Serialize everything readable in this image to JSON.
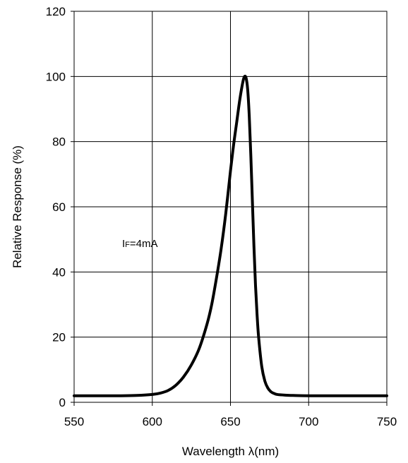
{
  "chart_data": {
    "type": "line",
    "title": "",
    "xlabel": "Wavelength λ(nm)",
    "ylabel": "Relative Response (%)",
    "xlim": [
      550,
      750
    ],
    "ylim": [
      0,
      120
    ],
    "xticks": [
      550,
      600,
      650,
      700,
      750
    ],
    "yticks": [
      0,
      20,
      40,
      60,
      80,
      100,
      120
    ],
    "grid": true,
    "legend": "none",
    "annotation": {
      "main": "I",
      "subscript": "F",
      "suffix": "=4mA"
    },
    "line_color": "#000000",
    "series": [
      {
        "x": [
          550,
          560,
          570,
          580,
          590,
          600,
          605,
          610,
          615,
          620,
          625,
          630,
          635,
          638,
          641,
          644,
          647,
          650,
          652,
          654,
          656,
          658,
          659,
          660,
          661,
          662,
          663,
          664,
          665,
          666,
          667,
          668,
          670,
          672,
          674,
          676,
          678,
          680,
          685,
          690,
          700,
          720,
          750
        ],
        "y": [
          2.0,
          2.0,
          2.0,
          2.0,
          2.1,
          2.4,
          2.8,
          3.6,
          5.2,
          7.8,
          11.5,
          16.5,
          24.0,
          30.0,
          38.0,
          47.0,
          58.0,
          71.0,
          79.0,
          86.0,
          93.0,
          98.5,
          100.0,
          99.5,
          96.0,
          88.0,
          76.0,
          62.0,
          48.0,
          36.0,
          27.0,
          20.0,
          11.0,
          6.5,
          4.3,
          3.2,
          2.7,
          2.4,
          2.2,
          2.1,
          2.0,
          2.0,
          2.0
        ]
      }
    ]
  }
}
